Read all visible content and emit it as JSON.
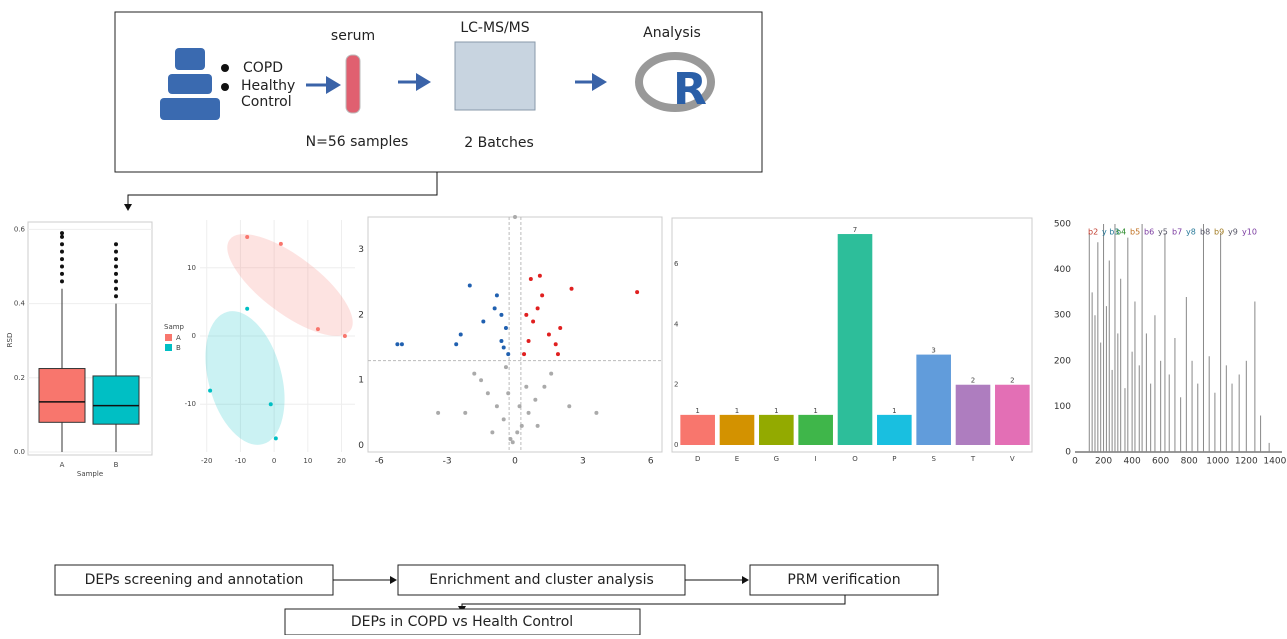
{
  "workflow": {
    "groups": [
      "COPD",
      "Healthy Control"
    ],
    "steps": [
      {
        "title": "serum",
        "note": "N=56 samples"
      },
      {
        "title": "LC-MS/MS",
        "note": "2 Batches"
      },
      {
        "title": "Analysis"
      }
    ]
  },
  "panels": {
    "boxplot": {
      "y_label": "RSD",
      "x_label": "Sample",
      "categories": [
        "A",
        "B"
      ],
      "yticks": [
        {
          "value": 0,
          "label": "0.0"
        },
        {
          "value": 0.2,
          "label": "0.2"
        },
        {
          "value": 0.4,
          "label": "0.4"
        },
        {
          "value": 0.6,
          "label": "0.6"
        }
      ],
      "colors": [
        "#f8766d",
        "#00bfc4"
      ],
      "boxes": [
        {
          "low": 0,
          "q1": 0.08,
          "median": 0.135,
          "q3": 0.225,
          "high": 0.44,
          "outliers": [
            0.46,
            0.48,
            0.5,
            0.52,
            0.54,
            0.56,
            0.58,
            0.59
          ]
        },
        {
          "low": 0,
          "q1": 0.075,
          "median": 0.125,
          "q3": 0.205,
          "high": 0.4,
          "outliers": [
            0.42,
            0.44,
            0.46,
            0.48,
            0.5,
            0.52,
            0.54,
            0.56
          ]
        }
      ]
    },
    "pca": {
      "legend_title": "Samp",
      "groups": [
        "A",
        "B"
      ],
      "colors": [
        "#f8766d",
        "#00bfc4"
      ],
      "xlim": [
        -22,
        24
      ],
      "ylim": [
        -17,
        17
      ],
      "xticks": [
        -20,
        -10,
        0,
        10,
        20
      ],
      "yticks": [
        -10,
        0,
        10
      ],
      "points": [
        {
          "group": 0,
          "x": -8,
          "y": 14.5
        },
        {
          "group": 0,
          "x": 2,
          "y": 13.5
        },
        {
          "group": 0,
          "x": 13,
          "y": 1
        },
        {
          "group": 0,
          "x": 21,
          "y": 0
        },
        {
          "group": 1,
          "x": -8,
          "y": 4
        },
        {
          "group": 1,
          "x": -19,
          "y": -8
        },
        {
          "group": 1,
          "x": -1,
          "y": -10
        },
        {
          "group": 1,
          "x": 0.5,
          "y": -15
        }
      ]
    },
    "volcano": {
      "xlim": [
        -6.5,
        6.5
      ],
      "ylim": [
        -0.1,
        3.5
      ],
      "xticks": [
        -6,
        -3,
        0,
        3,
        6
      ],
      "yticks": [
        0,
        1,
        2,
        3
      ],
      "thresholds": {
        "x": [
          -0.26,
          0.26
        ],
        "y": 1.3
      },
      "series": [
        {
          "color": "#aaaaaa",
          "points": [
            [
              -0.2,
              0.1
            ],
            [
              0.1,
              0.2
            ],
            [
              0.3,
              0.3
            ],
            [
              -0.5,
              0.4
            ],
            [
              0.6,
              0.5
            ],
            [
              -0.8,
              0.6
            ],
            [
              0.9,
              0.7
            ],
            [
              -1.2,
              0.8
            ],
            [
              1.3,
              0.9
            ],
            [
              -1.5,
              1.0
            ],
            [
              1.6,
              1.1
            ],
            [
              -0.4,
              1.2
            ],
            [
              0.5,
              0.9
            ],
            [
              -2.2,
              0.5
            ],
            [
              2.4,
              0.6
            ],
            [
              3.6,
              0.5
            ],
            [
              -3.4,
              0.5
            ],
            [
              -1.8,
              1.1
            ],
            [
              0,
              3.5
            ],
            [
              -0.1,
              0.05
            ],
            [
              0.2,
              0.6
            ],
            [
              -0.3,
              0.8
            ],
            [
              1.0,
              0.3
            ],
            [
              -1.0,
              0.2
            ]
          ]
        },
        {
          "color": "#2060b0",
          "points": [
            [
              -5.2,
              1.55
            ],
            [
              -5.0,
              1.55
            ],
            [
              -2.6,
              1.55
            ],
            [
              -2.4,
              1.7
            ],
            [
              -1.4,
              1.9
            ],
            [
              -0.9,
              2.1
            ],
            [
              -0.6,
              2.0
            ],
            [
              -0.4,
              1.8
            ],
            [
              -0.5,
              1.5
            ],
            [
              -0.3,
              1.4
            ],
            [
              -2.0,
              2.45
            ],
            [
              -0.8,
              2.3
            ],
            [
              -0.6,
              1.6
            ]
          ]
        },
        {
          "color": "#e02020",
          "points": [
            [
              0.4,
              1.4
            ],
            [
              0.6,
              1.6
            ],
            [
              0.8,
              1.9
            ],
            [
              1.0,
              2.1
            ],
            [
              1.2,
              2.3
            ],
            [
              1.5,
              1.7
            ],
            [
              1.8,
              1.55
            ],
            [
              2.0,
              1.8
            ],
            [
              2.5,
              2.4
            ],
            [
              5.4,
              2.35
            ],
            [
              0.7,
              2.55
            ],
            [
              1.1,
              2.6
            ],
            [
              0.5,
              2.0
            ],
            [
              1.9,
              1.4
            ]
          ]
        }
      ]
    },
    "bar": {
      "categories": [
        "D",
        "E",
        "G",
        "I",
        "O",
        "P",
        "S",
        "T",
        "V"
      ],
      "values": [
        1,
        1,
        1,
        1,
        7,
        1,
        3,
        2,
        2
      ],
      "colors": [
        "#f8766d",
        "#d39200",
        "#93aa00",
        "#3fb64a",
        "#2dbe9a",
        "#19bfe0",
        "#619cdb",
        "#ae7dbf",
        "#e36fb5"
      ],
      "ylim": [
        0,
        7.3
      ],
      "yticks": [
        0,
        2,
        4,
        6
      ]
    },
    "spectrum": {
      "xlim": [
        0,
        1450
      ],
      "ylim": [
        0,
        500
      ],
      "xticks": [
        0,
        200,
        400,
        600,
        800,
        1000,
        1200,
        1400
      ],
      "yticks": [
        0,
        100,
        200,
        300,
        400,
        500
      ],
      "ion_labels": [
        "b2",
        "y b3",
        "b4",
        "b5",
        "b6",
        "y5",
        "b7",
        "y8",
        "b8",
        "b9",
        "y9",
        "y10"
      ],
      "peaks": [
        [
          100,
          480
        ],
        [
          120,
          350
        ],
        [
          140,
          300
        ],
        [
          160,
          460
        ],
        [
          180,
          240
        ],
        [
          200,
          500
        ],
        [
          220,
          320
        ],
        [
          240,
          420
        ],
        [
          260,
          180
        ],
        [
          280,
          500
        ],
        [
          300,
          260
        ],
        [
          320,
          380
        ],
        [
          350,
          140
        ],
        [
          370,
          470
        ],
        [
          400,
          220
        ],
        [
          420,
          330
        ],
        [
          450,
          190
        ],
        [
          470,
          500
        ],
        [
          500,
          260
        ],
        [
          530,
          150
        ],
        [
          560,
          300
        ],
        [
          600,
          200
        ],
        [
          630,
          480
        ],
        [
          660,
          170
        ],
        [
          700,
          250
        ],
        [
          740,
          120
        ],
        [
          780,
          340
        ],
        [
          820,
          200
        ],
        [
          860,
          150
        ],
        [
          900,
          500
        ],
        [
          940,
          210
        ],
        [
          980,
          130
        ],
        [
          1020,
          480
        ],
        [
          1060,
          190
        ],
        [
          1100,
          150
        ],
        [
          1150,
          170
        ],
        [
          1200,
          200
        ],
        [
          1260,
          330
        ],
        [
          1300,
          80
        ],
        [
          1360,
          20
        ]
      ]
    }
  },
  "flow": {
    "steps": [
      "DEPs screening and annotation",
      "Enrichment and cluster analysis",
      "PRM verification"
    ],
    "result": "DEPs in COPD vs Health Control"
  }
}
